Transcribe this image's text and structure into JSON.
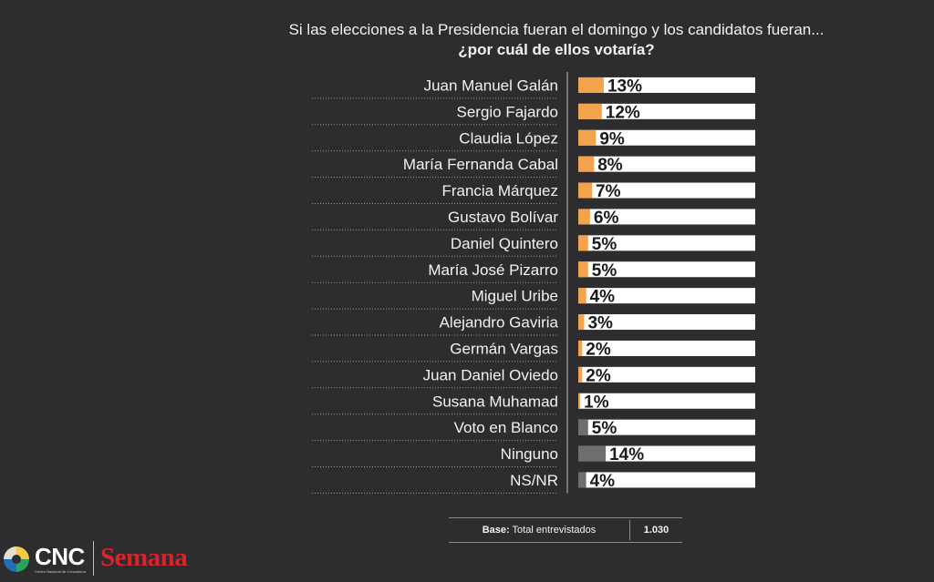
{
  "title": {
    "line1": "Si las elecciones a la Presidencia fueran el domingo y los  candidatos fueran...",
    "line2": "¿por cuál de ellos votaría?"
  },
  "colors": {
    "background": "#2d2d2f",
    "candidate_bar": "#f3a24e",
    "other_bar": "#6e6e6e",
    "track": "#ffffff",
    "value_text": "#1a1a1a"
  },
  "chart_data": {
    "type": "bar",
    "orientation": "horizontal",
    "title": "¿por cuál de ellos votaría?",
    "unit": "%",
    "xlim": [
      0,
      100
    ],
    "categories": [
      "Juan Manuel Galán",
      "Sergio Fajardo",
      "Claudia López",
      "María Fernanda Cabal",
      "Francia Márquez",
      "Gustavo Bolívar",
      "Daniel Quintero",
      "María José Pizarro",
      "Miguel Uribe",
      "Alejandro Gaviria",
      "Germán Vargas",
      "Juan Daniel Oviedo",
      "Susana Muhamad",
      "Voto en Blanco",
      "Ninguno",
      "NS/NR"
    ],
    "values": [
      13,
      12,
      9,
      8,
      7,
      6,
      5,
      5,
      4,
      3,
      2,
      2,
      1,
      5,
      14,
      4
    ],
    "labels": [
      "13%",
      "12%",
      "9%",
      "8%",
      "7%",
      "6%",
      "5%",
      "5%",
      "4%",
      "3%",
      "2%",
      "2%",
      "1%",
      "5%",
      "14%",
      "4%"
    ],
    "bar_kind": [
      "candidate",
      "candidate",
      "candidate",
      "candidate",
      "candidate",
      "candidate",
      "candidate",
      "candidate",
      "candidate",
      "candidate",
      "candidate",
      "candidate",
      "candidate",
      "other",
      "other",
      "other"
    ]
  },
  "base": {
    "label_bold": "Base:",
    "label": "Total entrevistados",
    "value": "1.030"
  },
  "footer": {
    "cnc": "CNC",
    "cnc_sub": "Centro Nacional de Consultoría",
    "semana": "Semana"
  }
}
